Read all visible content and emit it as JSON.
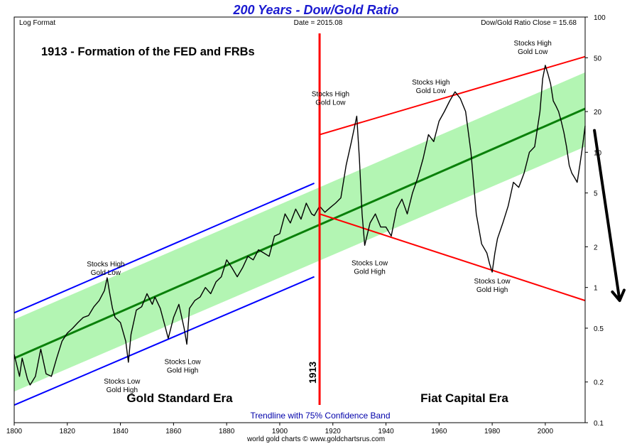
{
  "chart_data": {
    "type": "line",
    "title": "200 Years - Dow/Gold Ratio",
    "header": {
      "left": "Log Format",
      "center": "Date = 2015.08",
      "right": "Dow/Gold Ratio Close = 15.68"
    },
    "headline": "1913 - Formation of the FED and FRBs",
    "footer": "Trendline with 75% Confidence Band",
    "credit": "world gold charts © www.goldchartsrus.com",
    "era_labels": {
      "gold_standard": "Gold Standard Era",
      "fiat": "Fiat Capital Era"
    },
    "marker_label": "1913",
    "x_ticks": [
      "1800",
      "1820",
      "1840",
      "1860",
      "1880",
      "1900",
      "1920",
      "1940",
      "1960",
      "1980",
      "2000"
    ],
    "y_ticks": [
      "100",
      "50",
      "20",
      "10",
      "5",
      "2",
      "1",
      "0.5",
      "0.2",
      "0.1"
    ],
    "y_tick_values": [
      100,
      50,
      20,
      10,
      5,
      2,
      1,
      0.5,
      0.2,
      0.1
    ],
    "xlim": [
      1800,
      2015
    ],
    "ylim": [
      0.1,
      100
    ],
    "y_scale": "log",
    "grid": false,
    "annotations": [
      {
        "id": "sh1",
        "lines": [
          "Stocks High",
          "Gold Low"
        ],
        "x": 1835,
        "y": 1.18
      },
      {
        "id": "sl1",
        "lines": [
          "Stocks Low",
          "Gold High"
        ],
        "x": 1843,
        "y": 0.28
      },
      {
        "id": "sl2",
        "lines": [
          "Stocks Low",
          "Gold High"
        ],
        "x": 1865,
        "y": 0.38
      },
      {
        "id": "sh2",
        "lines": [
          "Stocks High",
          "Gold Low"
        ],
        "x": 1929,
        "y": 18.5
      },
      {
        "id": "sl3",
        "lines": [
          "Stocks Low",
          "Gold High"
        ],
        "x": 1932,
        "y": 2.05
      },
      {
        "id": "sh3",
        "lines": [
          "Stocks High",
          "Gold Low"
        ],
        "x": 1966,
        "y": 28
      },
      {
        "id": "sl4",
        "lines": [
          "Stocks Low",
          "Gold High"
        ],
        "x": 1980,
        "y": 1.3
      },
      {
        "id": "sh4",
        "lines": [
          "Stocks High",
          "Gold Low"
        ],
        "x": 1999,
        "y": 44
      }
    ],
    "series": [
      {
        "style": "ratio",
        "x": [
          1800,
          1802,
          1803,
          1805,
          1806,
          1808,
          1810,
          1812,
          1814,
          1816,
          1818,
          1820,
          1822,
          1824,
          1826,
          1828,
          1830,
          1832,
          1834,
          1835,
          1836,
          1837,
          1838,
          1840,
          1842,
          1843,
          1844,
          1846,
          1848,
          1850,
          1852,
          1853,
          1855,
          1857,
          1858,
          1860,
          1862,
          1864,
          1865,
          1866,
          1868,
          1870,
          1872,
          1874,
          1876,
          1878,
          1880,
          1882,
          1884,
          1886,
          1888,
          1890,
          1892,
          1894,
          1896,
          1898,
          1900,
          1902,
          1904,
          1906,
          1908,
          1910,
          1912,
          1913,
          1915,
          1917,
          1919,
          1921,
          1923,
          1925,
          1927,
          1929,
          1930,
          1931,
          1932,
          1934,
          1936,
          1938,
          1940,
          1942,
          1944,
          1946,
          1948,
          1950,
          1952,
          1954,
          1956,
          1958,
          1960,
          1962,
          1964,
          1966,
          1968,
          1970,
          1972,
          1974,
          1976,
          1978,
          1979,
          1980,
          1981,
          1982,
          1984,
          1986,
          1988,
          1990,
          1992,
          1994,
          1996,
          1998,
          1999,
          2000,
          2001,
          2002,
          2003,
          2004,
          2005,
          2006,
          2007,
          2008,
          2009,
          2010,
          2011,
          2012,
          2013,
          2014,
          2015
        ],
        "values": [
          0.32,
          0.22,
          0.3,
          0.21,
          0.19,
          0.22,
          0.35,
          0.23,
          0.22,
          0.3,
          0.4,
          0.46,
          0.5,
          0.55,
          0.6,
          0.62,
          0.72,
          0.8,
          0.95,
          1.18,
          0.9,
          0.7,
          0.6,
          0.55,
          0.4,
          0.28,
          0.45,
          0.68,
          0.72,
          0.9,
          0.75,
          0.85,
          0.7,
          0.5,
          0.42,
          0.6,
          0.75,
          0.5,
          0.38,
          0.7,
          0.8,
          0.85,
          1.0,
          0.9,
          1.1,
          1.2,
          1.6,
          1.4,
          1.2,
          1.4,
          1.7,
          1.6,
          1.9,
          1.8,
          1.7,
          2.4,
          2.5,
          3.5,
          3.0,
          3.8,
          3.2,
          4.2,
          3.5,
          3.4,
          4.0,
          3.6,
          3.9,
          4.2,
          4.6,
          8.0,
          12.0,
          18.5,
          9.0,
          3.5,
          2.05,
          3.0,
          3.5,
          2.8,
          2.8,
          2.4,
          3.8,
          4.5,
          3.5,
          5.0,
          6.5,
          9.0,
          13.5,
          12.0,
          17.0,
          20.0,
          24.0,
          28.0,
          25.0,
          20.0,
          10.0,
          3.5,
          2.1,
          1.8,
          1.5,
          1.3,
          1.8,
          2.3,
          3.0,
          4.0,
          6.0,
          5.5,
          7.0,
          10.0,
          11.0,
          20.0,
          35.0,
          44.0,
          38.0,
          32.0,
          24.0,
          22.0,
          20.0,
          17.0,
          14.0,
          11.0,
          8.0,
          7.0,
          6.5,
          6.0,
          8.0,
          11.0,
          15.68
        ]
      },
      {
        "style": "trend",
        "x": [
          1800,
          2015
        ],
        "values": [
          0.3,
          21
        ]
      },
      {
        "style": "band-upper",
        "x": [
          1800,
          2015
        ],
        "values": [
          0.58,
          39
        ]
      },
      {
        "style": "band-lower",
        "x": [
          1800,
          2015
        ],
        "values": [
          0.17,
          11
        ]
      },
      {
        "style": "blue-channel-upper",
        "x": [
          1800,
          1913
        ],
        "values": [
          0.65,
          5.9
        ]
      },
      {
        "style": "blue-channel-lower",
        "x": [
          1800,
          1913
        ],
        "values": [
          0.135,
          1.2
        ]
      },
      {
        "style": "red-channel-upper",
        "x": [
          1915,
          2015
        ],
        "values": [
          13.5,
          51
        ]
      },
      {
        "style": "red-channel-lower",
        "x": [
          1915,
          2015
        ],
        "values": [
          3.5,
          0.8
        ]
      },
      {
        "style": "arrow",
        "x": [
          2018.5,
          2028
        ],
        "values": [
          14.5,
          0.8
        ]
      }
    ],
    "fed_line_x": 1915,
    "colors": {
      "title": "#1a1ad0",
      "band": "#a6f3a6",
      "trend": "#0a800a",
      "blue_channel": "#0000ff",
      "red_lines": "#ff0000",
      "ratio": "#000000",
      "footer": "#0000aa"
    }
  }
}
